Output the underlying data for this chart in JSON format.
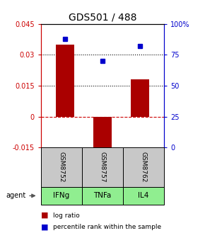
{
  "title": "GDS501 / 488",
  "samples": [
    "GSM8752",
    "GSM8757",
    "GSM8762"
  ],
  "agents": [
    "IFNg",
    "TNFa",
    "IL4"
  ],
  "log_ratios": [
    0.035,
    -0.017,
    0.018
  ],
  "percentile_ranks": [
    0.88,
    0.7,
    0.82
  ],
  "ylim_left": [
    -0.015,
    0.045
  ],
  "ylim_right": [
    0,
    1
  ],
  "yticks_left": [
    -0.015,
    0,
    0.015,
    0.03,
    0.045
  ],
  "ytick_labels_left": [
    "-0.015",
    "0",
    "0.015",
    "0.03",
    "0.045"
  ],
  "yticks_right": [
    0,
    0.25,
    0.5,
    0.75,
    1.0
  ],
  "ytick_labels_right": [
    "0",
    "25",
    "50",
    "75",
    "100%"
  ],
  "bar_color": "#AA0000",
  "dot_color": "#0000CC",
  "zero_line_color": "#CC0000",
  "sample_box_color": "#C8C8C8",
  "agent_box_color": "#90EE90",
  "left_axis_color": "#CC0000",
  "right_axis_color": "#0000CC",
  "bar_width": 0.5
}
